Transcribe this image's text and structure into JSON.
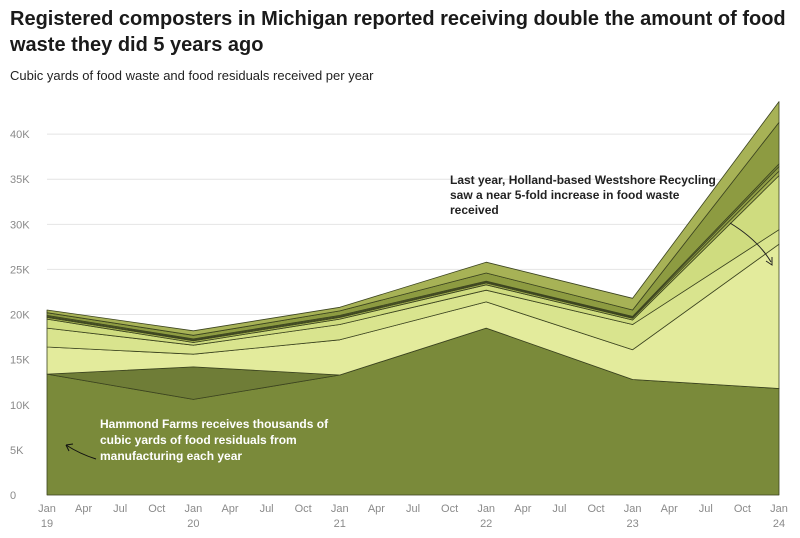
{
  "header": {
    "title": "Registered composters in Michigan reported receiving double the amount of food waste they did 5 years ago",
    "subtitle": "Cubic yards of food waste and food residuals received per year"
  },
  "chart_data": {
    "type": "area",
    "stacked": true,
    "title": "Registered composters in Michigan reported receiving double the amount of food waste they did 5 years ago",
    "subtitle": "Cubic yards of food waste and food residuals received per year",
    "xlabel": "",
    "ylabel": "",
    "x": [
      "2019-01",
      "2020-01",
      "2021-01",
      "2022-01",
      "2023-01",
      "2024-01"
    ],
    "x_ticks": [
      {
        "month": "Jan",
        "year": "19"
      },
      {
        "month": "Apr",
        "year": ""
      },
      {
        "month": "Jul",
        "year": ""
      },
      {
        "month": "Oct",
        "year": ""
      },
      {
        "month": "Jan",
        "year": "20"
      },
      {
        "month": "Apr",
        "year": ""
      },
      {
        "month": "Jul",
        "year": ""
      },
      {
        "month": "Oct",
        "year": ""
      },
      {
        "month": "Jan",
        "year": "21"
      },
      {
        "month": "Apr",
        "year": ""
      },
      {
        "month": "Jul",
        "year": ""
      },
      {
        "month": "Oct",
        "year": ""
      },
      {
        "month": "Jan",
        "year": "22"
      },
      {
        "month": "Apr",
        "year": ""
      },
      {
        "month": "Jul",
        "year": ""
      },
      {
        "month": "Oct",
        "year": ""
      },
      {
        "month": "Jan",
        "year": "23"
      },
      {
        "month": "Apr",
        "year": ""
      },
      {
        "month": "Jul",
        "year": ""
      },
      {
        "month": "Oct",
        "year": ""
      },
      {
        "month": "Jan",
        "year": "24"
      }
    ],
    "y_ticks": [
      "0",
      "5K",
      "10K",
      "15K",
      "20K",
      "25K",
      "30K",
      "35K",
      "40K"
    ],
    "ylim": [
      0,
      44000
    ],
    "grid": true,
    "legend": "none",
    "series": [
      {
        "values": [
          13400,
          10600,
          13300,
          18500,
          12800,
          11800
        ],
        "color": "#7a8a3a"
      },
      {
        "values": [
          0,
          3600,
          0,
          0,
          0,
          0
        ],
        "color": "#6f7d37"
      },
      {
        "values": [
          3000,
          1400,
          3900,
          2900,
          3300,
          16000
        ],
        "color": "#e3eb9c"
      },
      {
        "values": [
          2100,
          1000,
          1700,
          1300,
          2800,
          1600
        ],
        "color": "#d9e48e"
      },
      {
        "values": [
          1000,
          300,
          600,
          600,
          500,
          6000
        ],
        "color": "#cfdc7f"
      },
      {
        "values": [
          200,
          200,
          200,
          200,
          200,
          500
        ],
        "color": "#a5b252"
      },
      {
        "values": [
          100,
          100,
          100,
          100,
          100,
          500
        ],
        "color": "#8f9d45"
      },
      {
        "values": [
          100,
          100,
          100,
          100,
          100,
          300
        ],
        "color": "#7d8b3b"
      },
      {
        "values": [
          300,
          400,
          500,
          900,
          700,
          4600
        ],
        "color": "#8d9b41"
      },
      {
        "values": [
          300,
          500,
          400,
          1200,
          1300,
          2300
        ],
        "color": "#a7b256"
      }
    ],
    "annotations": [
      {
        "text_lines": [
          "Last year, Holland-based Westshore Recycling",
          "saw a near 5-fold increase in food waste",
          "received"
        ],
        "color": "#222222"
      },
      {
        "text_lines": [
          "Hammond Farms receives thousands of",
          "cubic yards of food residuals from",
          "manufacturing each year"
        ],
        "color": "#ffffff"
      }
    ]
  }
}
